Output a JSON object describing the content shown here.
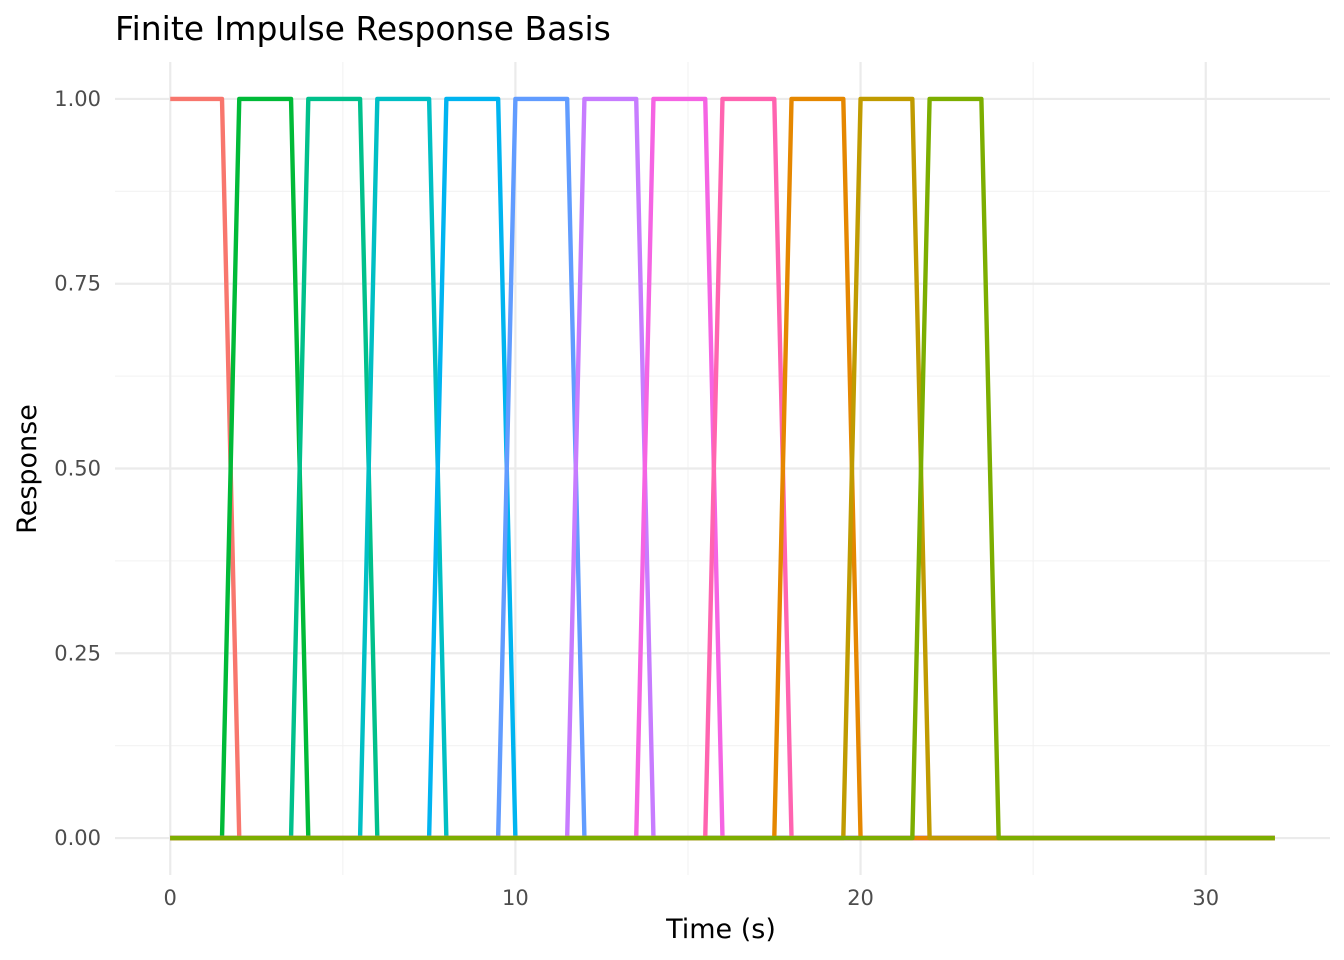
{
  "chart_data": {
    "type": "line",
    "title": "Finite Impulse Response Basis",
    "xlabel": "Time (s)",
    "ylabel": "Response",
    "xlim": [
      -1.6,
      33.6
    ],
    "ylim": [
      -0.05,
      1.05
    ],
    "x_ticks": [
      0,
      10,
      20,
      30
    ],
    "x_tick_labels": [
      "0",
      "10",
      "20",
      "30"
    ],
    "x_minor_ticks": [
      5,
      15,
      25
    ],
    "y_ticks": [
      0,
      0.25,
      0.5,
      0.75,
      1.0
    ],
    "y_tick_labels": [
      "0.00",
      "0.25",
      "0.50",
      "0.75",
      "1.00"
    ],
    "y_minor_ticks": [
      0.125,
      0.375,
      0.625,
      0.875
    ],
    "grid": true,
    "legend": "none",
    "x_max": 32,
    "series": [
      {
        "color": "#F8766D",
        "x": [
          0,
          1.5,
          2.0,
          32
        ],
        "y": [
          1,
          1,
          0,
          0
        ]
      },
      {
        "color": "#00BA38",
        "x": [
          0,
          1.5,
          2.0,
          3.5,
          4.0,
          32
        ],
        "y": [
          0,
          0,
          1,
          1,
          0,
          0
        ]
      },
      {
        "color": "#00C08B",
        "x": [
          0,
          3.5,
          4.0,
          5.5,
          6.0,
          32
        ],
        "y": [
          0,
          0,
          1,
          1,
          0,
          0
        ]
      },
      {
        "color": "#00BFC4",
        "x": [
          0,
          5.5,
          6.0,
          7.5,
          8.0,
          32
        ],
        "y": [
          0,
          0,
          1,
          1,
          0,
          0
        ]
      },
      {
        "color": "#00B4F0",
        "x": [
          0,
          7.5,
          8.0,
          9.5,
          10.0,
          32
        ],
        "y": [
          0,
          0,
          1,
          1,
          0,
          0
        ]
      },
      {
        "color": "#619CFF",
        "x": [
          0,
          9.5,
          10.0,
          11.5,
          12.0,
          32
        ],
        "y": [
          0,
          0,
          1,
          1,
          0,
          0
        ]
      },
      {
        "color": "#C77CFF",
        "x": [
          0,
          11.5,
          12.0,
          13.5,
          14.0,
          32
        ],
        "y": [
          0,
          0,
          1,
          1,
          0,
          0
        ]
      },
      {
        "color": "#F564E3",
        "x": [
          0,
          13.5,
          14.0,
          15.5,
          16.0,
          32
        ],
        "y": [
          0,
          0,
          1,
          1,
          0,
          0
        ]
      },
      {
        "color": "#FF64B0",
        "x": [
          0,
          15.5,
          16.0,
          17.5,
          18.0,
          32
        ],
        "y": [
          0,
          0,
          1,
          1,
          0,
          0
        ]
      },
      {
        "color": "#E58700",
        "x": [
          0,
          17.5,
          18.0,
          19.5,
          20.0,
          32
        ],
        "y": [
          0,
          0,
          1,
          1,
          0,
          0
        ]
      },
      {
        "color": "#C09B00",
        "x": [
          0,
          19.5,
          20.0,
          21.5,
          22.0,
          32
        ],
        "y": [
          0,
          0,
          1,
          1,
          0,
          0
        ]
      },
      {
        "color": "#7CAE00",
        "x": [
          0,
          21.5,
          22.0,
          23.5,
          24.0,
          32
        ],
        "y": [
          0,
          0,
          1,
          1,
          0,
          0
        ]
      }
    ]
  }
}
